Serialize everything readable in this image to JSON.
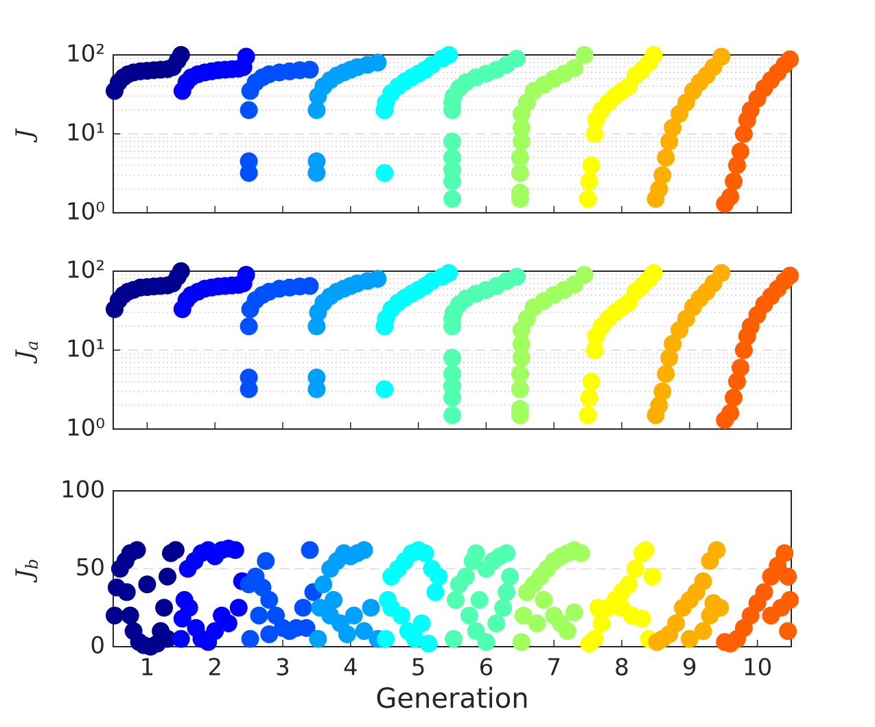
{
  "chart_data": [
    {
      "type": "scatter",
      "log_y": true,
      "grid": true,
      "ylabel": {
        "text": "J"
      },
      "xlim": [
        0.5,
        10.5
      ],
      "ylim": [
        1,
        100
      ],
      "yticks": [
        {
          "value": 1,
          "label": "10⁰"
        },
        {
          "value": 10,
          "label": "10¹"
        },
        {
          "value": 100,
          "label": "10²"
        }
      ],
      "series": [
        {
          "color": "#00008f",
          "x": [
            0.52,
            0.58,
            0.65,
            0.72,
            0.8,
            0.9,
            1.0,
            1.1,
            1.2,
            1.3,
            1.38,
            1.45,
            1.5
          ],
          "values": [
            35,
            45,
            52,
            57,
            60,
            62,
            63,
            64,
            65,
            66,
            70,
            85,
            100
          ]
        },
        {
          "color": "#0000ff",
          "x": [
            1.52,
            1.58,
            1.65,
            1.75,
            1.85,
            1.95,
            2.05,
            2.15,
            2.25,
            2.35,
            2.42,
            2.46
          ],
          "values": [
            35,
            45,
            52,
            57,
            60,
            62,
            64,
            65,
            66,
            67,
            70,
            95
          ]
        },
        {
          "color": "#0050ff",
          "x": [
            2.5,
            2.5,
            2.5,
            2.52,
            2.6,
            2.7,
            2.8,
            2.95,
            3.1,
            3.25,
            3.4
          ],
          "values": [
            20,
            3.2,
            4.5,
            35,
            45,
            52,
            57,
            60,
            62,
            64,
            65
          ]
        },
        {
          "color": "#00a0ff",
          "x": [
            3.5,
            3.5,
            3.5,
            3.52,
            3.6,
            3.7,
            3.8,
            3.9,
            4.0,
            4.1,
            4.25,
            4.4
          ],
          "values": [
            20,
            3.2,
            4.5,
            30,
            40,
            48,
            55,
            60,
            65,
            70,
            75,
            80
          ]
        },
        {
          "color": "#00ffff",
          "x": [
            4.5,
            4.5,
            4.52,
            4.6,
            4.7,
            4.8,
            4.9,
            5.0,
            5.1,
            5.2,
            5.35,
            5.45
          ],
          "values": [
            3.2,
            20,
            25,
            33,
            40,
            46,
            52,
            58,
            65,
            75,
            90,
            100
          ]
        },
        {
          "color": "#50ffaf",
          "x": [
            5.5,
            5.5,
            5.5,
            5.5,
            5.5,
            5.5,
            5.5,
            5.52,
            5.6,
            5.7,
            5.85,
            6.0,
            6.15,
            6.3,
            6.45
          ],
          "values": [
            1.5,
            2.5,
            3.5,
            5,
            8,
            20,
            25,
            30,
            38,
            45,
            52,
            58,
            65,
            75,
            90
          ]
        },
        {
          "color": "#a0ff5f",
          "x": [
            6.5,
            6.5,
            6.5,
            6.5,
            6.52,
            6.52,
            6.52,
            6.6,
            6.7,
            6.85,
            7.0,
            7.15,
            7.3,
            7.45
          ],
          "values": [
            1.5,
            1.8,
            3.2,
            5,
            8,
            12,
            18,
            25,
            35,
            42,
            50,
            58,
            68,
            100
          ]
        },
        {
          "color": "#ffff00",
          "x": [
            7.5,
            7.52,
            7.55,
            7.6,
            7.62,
            7.7,
            7.8,
            7.9,
            8.0,
            8.1,
            8.2,
            8.3,
            8.4,
            8.47
          ],
          "values": [
            1.5,
            2.5,
            4,
            10,
            15,
            20,
            25,
            30,
            35,
            40,
            55,
            65,
            80,
            100
          ]
        },
        {
          "color": "#ffaf00",
          "x": [
            8.5,
            8.55,
            8.6,
            8.65,
            8.7,
            8.75,
            8.85,
            8.95,
            9.05,
            9.15,
            9.25,
            9.35,
            9.47
          ],
          "values": [
            1.5,
            2,
            3,
            5,
            8,
            12,
            18,
            25,
            35,
            45,
            55,
            70,
            95
          ]
        },
        {
          "color": "#ff5f00",
          "x": [
            9.52,
            9.6,
            9.65,
            9.7,
            9.75,
            9.8,
            9.85,
            9.9,
            10.0,
            10.1,
            10.2,
            10.3,
            10.4,
            10.48
          ],
          "values": [
            1.3,
            1.6,
            2.5,
            4,
            6,
            10,
            15,
            20,
            28,
            38,
            48,
            60,
            75,
            88
          ]
        }
      ]
    },
    {
      "type": "scatter",
      "log_y": true,
      "grid": true,
      "ylabel": {
        "text": "J",
        "sub": "a"
      },
      "xlim": [
        0.5,
        10.5
      ],
      "ylim": [
        1,
        100
      ],
      "yticks": [
        {
          "value": 1,
          "label": "10⁰"
        },
        {
          "value": 10,
          "label": "10¹"
        },
        {
          "value": 100,
          "label": "10²"
        }
      ],
      "series": [
        {
          "color": "#00008f",
          "x": [
            0.52,
            0.58,
            0.65,
            0.72,
            0.8,
            0.9,
            1.0,
            1.1,
            1.2,
            1.3,
            1.38,
            1.45,
            1.5
          ],
          "values": [
            33,
            43,
            50,
            55,
            58,
            62,
            63,
            64,
            65,
            66,
            70,
            85,
            100
          ]
        },
        {
          "color": "#0000ff",
          "x": [
            1.52,
            1.58,
            1.65,
            1.75,
            1.85,
            1.95,
            2.05,
            2.15,
            2.25,
            2.35,
            2.42,
            2.46
          ],
          "values": [
            33,
            43,
            50,
            55,
            60,
            62,
            64,
            65,
            66,
            67,
            70,
            90
          ]
        },
        {
          "color": "#0050ff",
          "x": [
            2.5,
            2.5,
            2.5,
            2.52,
            2.6,
            2.7,
            2.8,
            2.95,
            3.1,
            3.25,
            3.4
          ],
          "values": [
            20,
            3.2,
            4.5,
            33,
            43,
            50,
            55,
            60,
            62,
            64,
            65
          ]
        },
        {
          "color": "#00a0ff",
          "x": [
            3.5,
            3.5,
            3.5,
            3.52,
            3.6,
            3.7,
            3.8,
            3.9,
            4.0,
            4.1,
            4.25,
            4.4
          ],
          "values": [
            20,
            3.2,
            4.5,
            30,
            40,
            48,
            55,
            60,
            65,
            70,
            75,
            80
          ]
        },
        {
          "color": "#00ffff",
          "x": [
            4.5,
            4.5,
            4.52,
            4.6,
            4.7,
            4.8,
            4.9,
            5.0,
            5.1,
            5.2,
            5.35,
            5.45
          ],
          "values": [
            3.2,
            20,
            25,
            33,
            40,
            46,
            52,
            58,
            65,
            75,
            85,
            95
          ]
        },
        {
          "color": "#50ffaf",
          "x": [
            5.5,
            5.5,
            5.5,
            5.5,
            5.5,
            5.5,
            5.5,
            5.52,
            5.6,
            5.7,
            5.85,
            6.0,
            6.15,
            6.3,
            6.45
          ],
          "values": [
            1.5,
            2.5,
            3.5,
            5,
            8,
            20,
            25,
            30,
            38,
            45,
            52,
            58,
            65,
            75,
            85
          ]
        },
        {
          "color": "#a0ff5f",
          "x": [
            6.5,
            6.5,
            6.5,
            6.5,
            6.52,
            6.52,
            6.52,
            6.6,
            6.7,
            6.85,
            7.0,
            7.15,
            7.3,
            7.45
          ],
          "values": [
            1.5,
            1.8,
            3.2,
            5,
            8,
            12,
            18,
            25,
            35,
            42,
            50,
            58,
            68,
            90
          ]
        },
        {
          "color": "#ffff00",
          "x": [
            7.5,
            7.52,
            7.55,
            7.6,
            7.62,
            7.7,
            7.8,
            7.9,
            8.0,
            8.1,
            8.2,
            8.3,
            8.4,
            8.47
          ],
          "values": [
            1.5,
            2.5,
            4,
            10,
            15,
            20,
            25,
            30,
            35,
            40,
            55,
            65,
            80,
            95
          ]
        },
        {
          "color": "#ffaf00",
          "x": [
            8.5,
            8.55,
            8.6,
            8.65,
            8.7,
            8.75,
            8.85,
            8.95,
            9.05,
            9.15,
            9.25,
            9.35,
            9.47
          ],
          "values": [
            1.5,
            2,
            3,
            5,
            8,
            12,
            18,
            25,
            35,
            45,
            55,
            70,
            95
          ]
        },
        {
          "color": "#ff5f00",
          "x": [
            9.52,
            9.6,
            9.65,
            9.7,
            9.75,
            9.8,
            9.85,
            9.9,
            10.0,
            10.1,
            10.2,
            10.3,
            10.4,
            10.48
          ],
          "values": [
            1.3,
            1.6,
            2.5,
            4,
            6,
            10,
            15,
            20,
            28,
            38,
            48,
            60,
            75,
            88
          ]
        }
      ]
    },
    {
      "type": "scatter",
      "log_y": false,
      "grid": true,
      "ylabel": {
        "text": "J",
        "sub": "b"
      },
      "xlabel": "Generation",
      "xlim": [
        0.5,
        10.5
      ],
      "ylim": [
        0,
        100
      ],
      "yticks": [
        0,
        50,
        100
      ],
      "xticks": [
        1,
        2,
        3,
        4,
        5,
        6,
        7,
        8,
        9,
        10
      ],
      "series": [
        {
          "color": "#00008f",
          "x": [
            0.52,
            0.55,
            0.6,
            0.68,
            0.75,
            0.85,
            0.7,
            0.75,
            0.8,
            0.88,
            0.95,
            1.05,
            1.15,
            1.2,
            1.25,
            1.3,
            1.35,
            1.42,
            1.0,
            1.3
          ],
          "values": [
            20,
            38,
            50,
            55,
            60,
            62,
            35,
            20,
            10,
            3,
            1,
            0,
            2,
            10,
            25,
            45,
            60,
            62,
            40,
            5
          ]
        },
        {
          "color": "#0000ff",
          "x": [
            1.52,
            1.55,
            1.6,
            1.7,
            1.8,
            1.9,
            2.0,
            2.1,
            2.2,
            2.3,
            1.62,
            1.72,
            1.8,
            1.9,
            2.0,
            2.1,
            2.2,
            2.35,
            2.4,
            1.5
          ],
          "values": [
            18,
            30,
            50,
            55,
            60,
            62,
            58,
            62,
            63,
            62,
            25,
            12,
            5,
            3,
            10,
            20,
            15,
            25,
            42,
            5
          ]
        },
        {
          "color": "#0050ff",
          "x": [
            2.52,
            2.5,
            2.6,
            2.7,
            2.8,
            2.9,
            3.0,
            3.1,
            3.2,
            3.3,
            3.35,
            3.4,
            2.75,
            2.65,
            2.8,
            3.45
          ],
          "values": [
            5,
            40,
            45,
            38,
            30,
            20,
            12,
            10,
            12,
            25,
            12,
            62,
            55,
            20,
            8,
            35
          ]
        },
        {
          "color": "#00a0ff",
          "x": [
            3.52,
            3.55,
            3.6,
            3.7,
            3.8,
            3.9,
            4.0,
            4.1,
            4.2,
            3.75,
            3.85,
            3.95,
            4.05,
            4.2,
            4.3,
            4.4,
            3.7
          ],
          "values": [
            5,
            25,
            40,
            50,
            55,
            60,
            58,
            60,
            62,
            30,
            15,
            8,
            20,
            10,
            25,
            5,
            20
          ]
        },
        {
          "color": "#00ffff",
          "x": [
            4.52,
            4.55,
            4.6,
            4.7,
            4.8,
            4.9,
            5.0,
            5.1,
            5.2,
            5.25,
            5.3,
            4.75,
            4.85,
            4.95,
            5.05,
            5.15,
            4.6
          ],
          "values": [
            5,
            30,
            45,
            50,
            55,
            60,
            62,
            60,
            50,
            35,
            45,
            20,
            10,
            5,
            15,
            2,
            25
          ]
        },
        {
          "color": "#50ffaf",
          "x": [
            5.52,
            5.55,
            5.6,
            5.7,
            5.8,
            5.85,
            5.9,
            6.0,
            6.1,
            6.2,
            6.3,
            6.35,
            5.75,
            5.85,
            6.0,
            6.15,
            6.25,
            6.3
          ],
          "values": [
            5,
            30,
            40,
            45,
            55,
            60,
            30,
            50,
            55,
            58,
            60,
            45,
            20,
            10,
            3,
            15,
            25,
            35
          ]
        },
        {
          "color": "#a0ff5f",
          "x": [
            6.52,
            6.55,
            6.6,
            6.7,
            6.8,
            6.9,
            7.0,
            7.1,
            7.2,
            7.3,
            6.75,
            6.85,
            7.0,
            7.1,
            7.2,
            7.3,
            7.4
          ],
          "values": [
            3,
            20,
            35,
            40,
            45,
            50,
            55,
            58,
            60,
            62,
            15,
            30,
            20,
            15,
            10,
            22,
            60
          ]
        },
        {
          "color": "#ffff00",
          "x": [
            7.52,
            7.6,
            7.7,
            7.8,
            7.9,
            8.0,
            8.1,
            8.2,
            8.3,
            8.35,
            8.45,
            8.0,
            8.15,
            8.3,
            8.4,
            7.65
          ],
          "values": [
            2,
            5,
            15,
            25,
            30,
            35,
            40,
            50,
            60,
            62,
            45,
            25,
            20,
            18,
            5,
            25
          ]
        },
        {
          "color": "#ffaf00",
          "x": [
            8.52,
            8.6,
            8.7,
            8.8,
            8.9,
            9.0,
            9.1,
            9.2,
            9.3,
            9.4,
            9.35,
            9.45,
            9.2,
            9.0,
            9.3
          ],
          "values": [
            3,
            5,
            8,
            15,
            25,
            30,
            35,
            42,
            55,
            62,
            28,
            25,
            10,
            5,
            20
          ]
        },
        {
          "color": "#ff5f00",
          "x": [
            9.52,
            9.6,
            9.7,
            9.8,
            9.9,
            10.0,
            10.1,
            10.2,
            10.3,
            10.4,
            10.45,
            10.48,
            10.45,
            10.2,
            10.35
          ],
          "values": [
            3,
            2,
            5,
            12,
            20,
            28,
            35,
            45,
            52,
            60,
            45,
            30,
            10,
            20,
            25
          ]
        }
      ]
    }
  ]
}
